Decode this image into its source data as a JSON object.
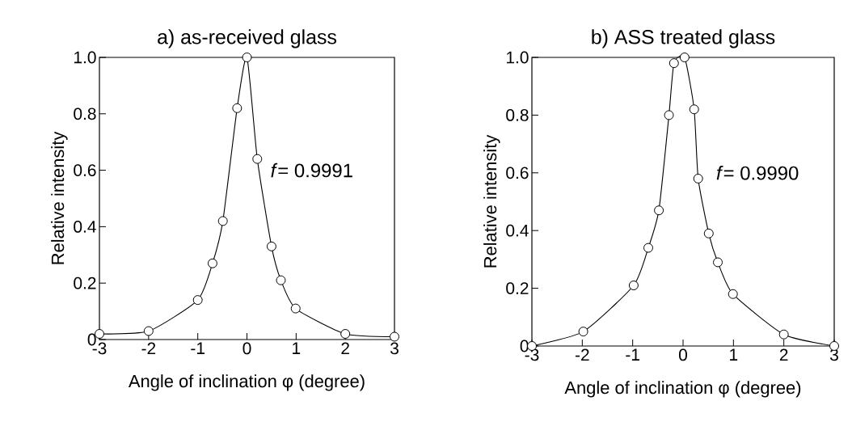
{
  "chart_data": [
    {
      "type": "line",
      "title": "a) as-received glass",
      "xlabel": "Angle of inclination  φ (degree)",
      "ylabel": "Relative intensity",
      "marker": "circle",
      "line_style": "solid",
      "x": [
        -3,
        -2.0,
        -1.0,
        -0.7,
        -0.49,
        -0.2,
        0.0,
        0.21,
        0.5,
        0.69,
        0.99,
        2.0,
        3.0
      ],
      "series": [
        {
          "color": "#000000",
          "values": [
            0.02,
            0.03,
            0.14,
            0.27,
            0.42,
            0.82,
            1.0,
            0.64,
            0.33,
            0.21,
            0.11,
            0.02,
            0.01
          ]
        }
      ],
      "xlim": [
        -3,
        3
      ],
      "ylim": [
        0,
        1
      ],
      "xticks": [
        -3,
        -2,
        -1,
        0,
        1,
        2,
        3
      ],
      "yticks": [
        0,
        0.2,
        0.4,
        0.6,
        0.8,
        {
          "value": 1,
          "label": "1.0"
        }
      ],
      "annotations": [
        "*f*= 0.9991"
      ]
    },
    {
      "type": "line",
      "title": "b) ASS treated glass",
      "xlabel": "Angle of inclination  φ (degree)",
      "ylabel": "Relative intensity",
      "marker": "circle",
      "line_style": "solid",
      "x": [
        -3,
        -1.98,
        -0.98,
        -0.69,
        -0.48,
        -0.28,
        -0.18,
        0.03,
        0.22,
        0.3,
        0.51,
        0.69,
        0.99,
        2.0,
        3.0
      ],
      "series": [
        {
          "color": "#000000",
          "values": [
            0.0,
            0.05,
            0.21,
            0.34,
            0.47,
            0.8,
            0.98,
            1.0,
            0.82,
            0.58,
            0.39,
            0.29,
            0.18,
            0.04,
            0.0
          ]
        }
      ],
      "xlim": [
        -3,
        3
      ],
      "ylim": [
        0,
        1
      ],
      "xticks": [
        -3,
        -2,
        -1,
        0,
        1,
        2,
        3
      ],
      "yticks": [
        0,
        0.2,
        0.4,
        0.6,
        0.8,
        {
          "value": 1,
          "label": "1.0"
        }
      ],
      "annotations": [
        "*f*= 0.9990"
      ]
    }
  ]
}
